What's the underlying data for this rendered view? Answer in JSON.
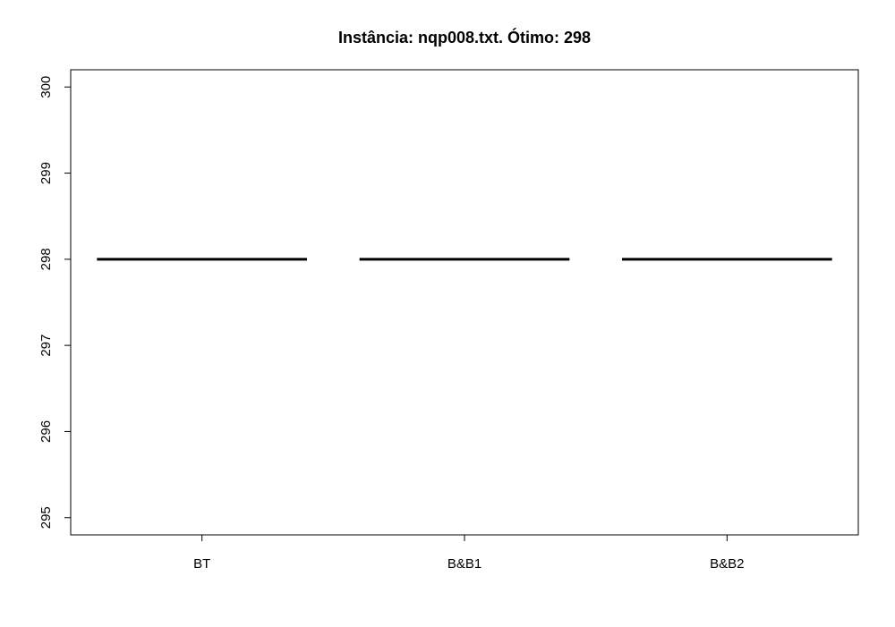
{
  "chart_data": {
    "type": "box",
    "title": "Instância: nqp008.txt. Ótimo: 298",
    "xlabel": "",
    "ylabel": "",
    "categories": [
      "BT",
      "B&B1",
      "B&B2"
    ],
    "boxes": [
      {
        "name": "BT",
        "min": 298,
        "q1": 298,
        "median": 298,
        "q3": 298,
        "max": 298
      },
      {
        "name": "B&B1",
        "min": 298,
        "q1": 298,
        "median": 298,
        "q3": 298,
        "max": 298
      },
      {
        "name": "B&B2",
        "min": 298,
        "q1": 298,
        "median": 298,
        "q3": 298,
        "max": 298
      }
    ],
    "ylim": [
      294.8,
      300.2
    ],
    "yticks": [
      295,
      296,
      297,
      298,
      299,
      300
    ],
    "grid": false,
    "legend": "none",
    "colors": {
      "line": "#000000",
      "background": "#ffffff"
    }
  }
}
